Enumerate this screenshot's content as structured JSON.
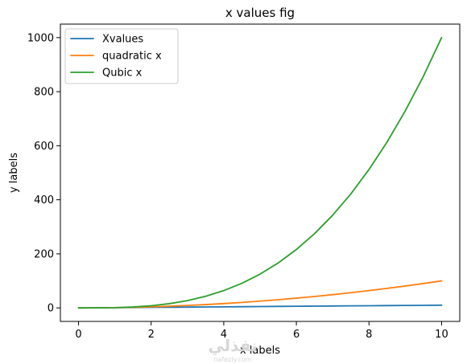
{
  "chart_data": {
    "type": "line",
    "title": "x values fig",
    "xlabel": "x labels",
    "ylabel": "y labels",
    "xlim": [
      -0.5,
      10.5
    ],
    "ylim": [
      -50,
      1050
    ],
    "xticks": [
      0,
      2,
      4,
      6,
      8,
      10
    ],
    "yticks": [
      0,
      200,
      400,
      600,
      800,
      1000
    ],
    "grid": false,
    "legend_position": "top-left",
    "x": [
      0,
      0.5,
      1,
      1.5,
      2,
      2.5,
      3,
      3.5,
      4,
      4.5,
      5,
      5.5,
      6,
      6.5,
      7,
      7.5,
      8,
      8.5,
      9,
      9.5,
      10
    ],
    "series": [
      {
        "name": "Xvalues",
        "color": "#1f77b4",
        "values": [
          0,
          0.5,
          1,
          1.5,
          2,
          2.5,
          3,
          3.5,
          4,
          4.5,
          5,
          5.5,
          6,
          6.5,
          7,
          7.5,
          8,
          8.5,
          9,
          9.5,
          10
        ]
      },
      {
        "name": "quadratic x",
        "color": "#ff7f0e",
        "values": [
          0,
          0.25,
          1,
          2.25,
          4,
          6.25,
          9,
          12.25,
          16,
          20.25,
          25,
          30.25,
          36,
          42.25,
          49,
          56.25,
          64,
          72.25,
          81,
          90.25,
          100
        ]
      },
      {
        "name": "Qubic x",
        "color": "#2ca02c",
        "values": [
          0,
          0.125,
          1,
          3.375,
          8,
          15.625,
          27,
          42.875,
          64,
          91.125,
          125,
          166.375,
          216,
          274.625,
          343,
          421.875,
          512,
          614.125,
          729,
          857.375,
          1000
        ]
      }
    ]
  },
  "watermark": {
    "line1": "نفذلي",
    "line2": "nafezly.com"
  }
}
